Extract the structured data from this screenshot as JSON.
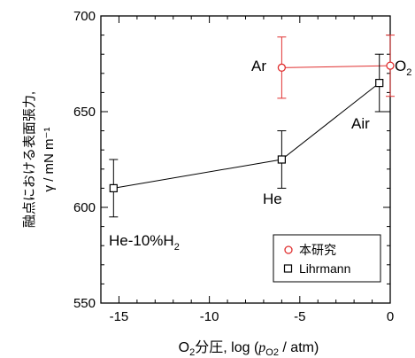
{
  "chart_data": {
    "type": "scatter",
    "title": "",
    "xlabel": {
      "o": "O",
      "o_sub": "2",
      "text": "分圧, log (",
      "p": "p",
      "p_sub": "O2",
      "tail": " / atm)"
    },
    "ylabel": {
      "line1": "融点における表面張力,",
      "line2": "γ / mN m⁻¹"
    },
    "xlim": [
      -16,
      0
    ],
    "ylim": [
      550,
      700
    ],
    "xticks": [
      "-15",
      "-10",
      "-5",
      "0"
    ],
    "xtick_values": [
      -15,
      -10,
      -5,
      0
    ],
    "yticks": [
      "550",
      "600",
      "650",
      "700"
    ],
    "ytick_values": [
      550,
      600,
      650,
      700
    ],
    "grid": false,
    "legend_position": "bottom-right",
    "series": [
      {
        "name": "本研究",
        "color": "#e03030",
        "marker": "circle",
        "points": [
          {
            "x": -6.0,
            "y": 673,
            "err": 16
          },
          {
            "x": 0.0,
            "y": 674,
            "err": 16
          }
        ]
      },
      {
        "name": "Lihrmann",
        "color": "#000000",
        "marker": "square",
        "points": [
          {
            "x": -15.3,
            "y": 610,
            "err": 15
          },
          {
            "x": -6.0,
            "y": 625,
            "err": 15
          },
          {
            "x": -0.6,
            "y": 665,
            "err": 15
          }
        ]
      }
    ],
    "annotations": {
      "ar": "Ar",
      "o2_main": "O",
      "o2_sub": "2",
      "air": "Air",
      "he": "He",
      "he10_main": "He-10%H",
      "he10_sub": "2"
    }
  }
}
